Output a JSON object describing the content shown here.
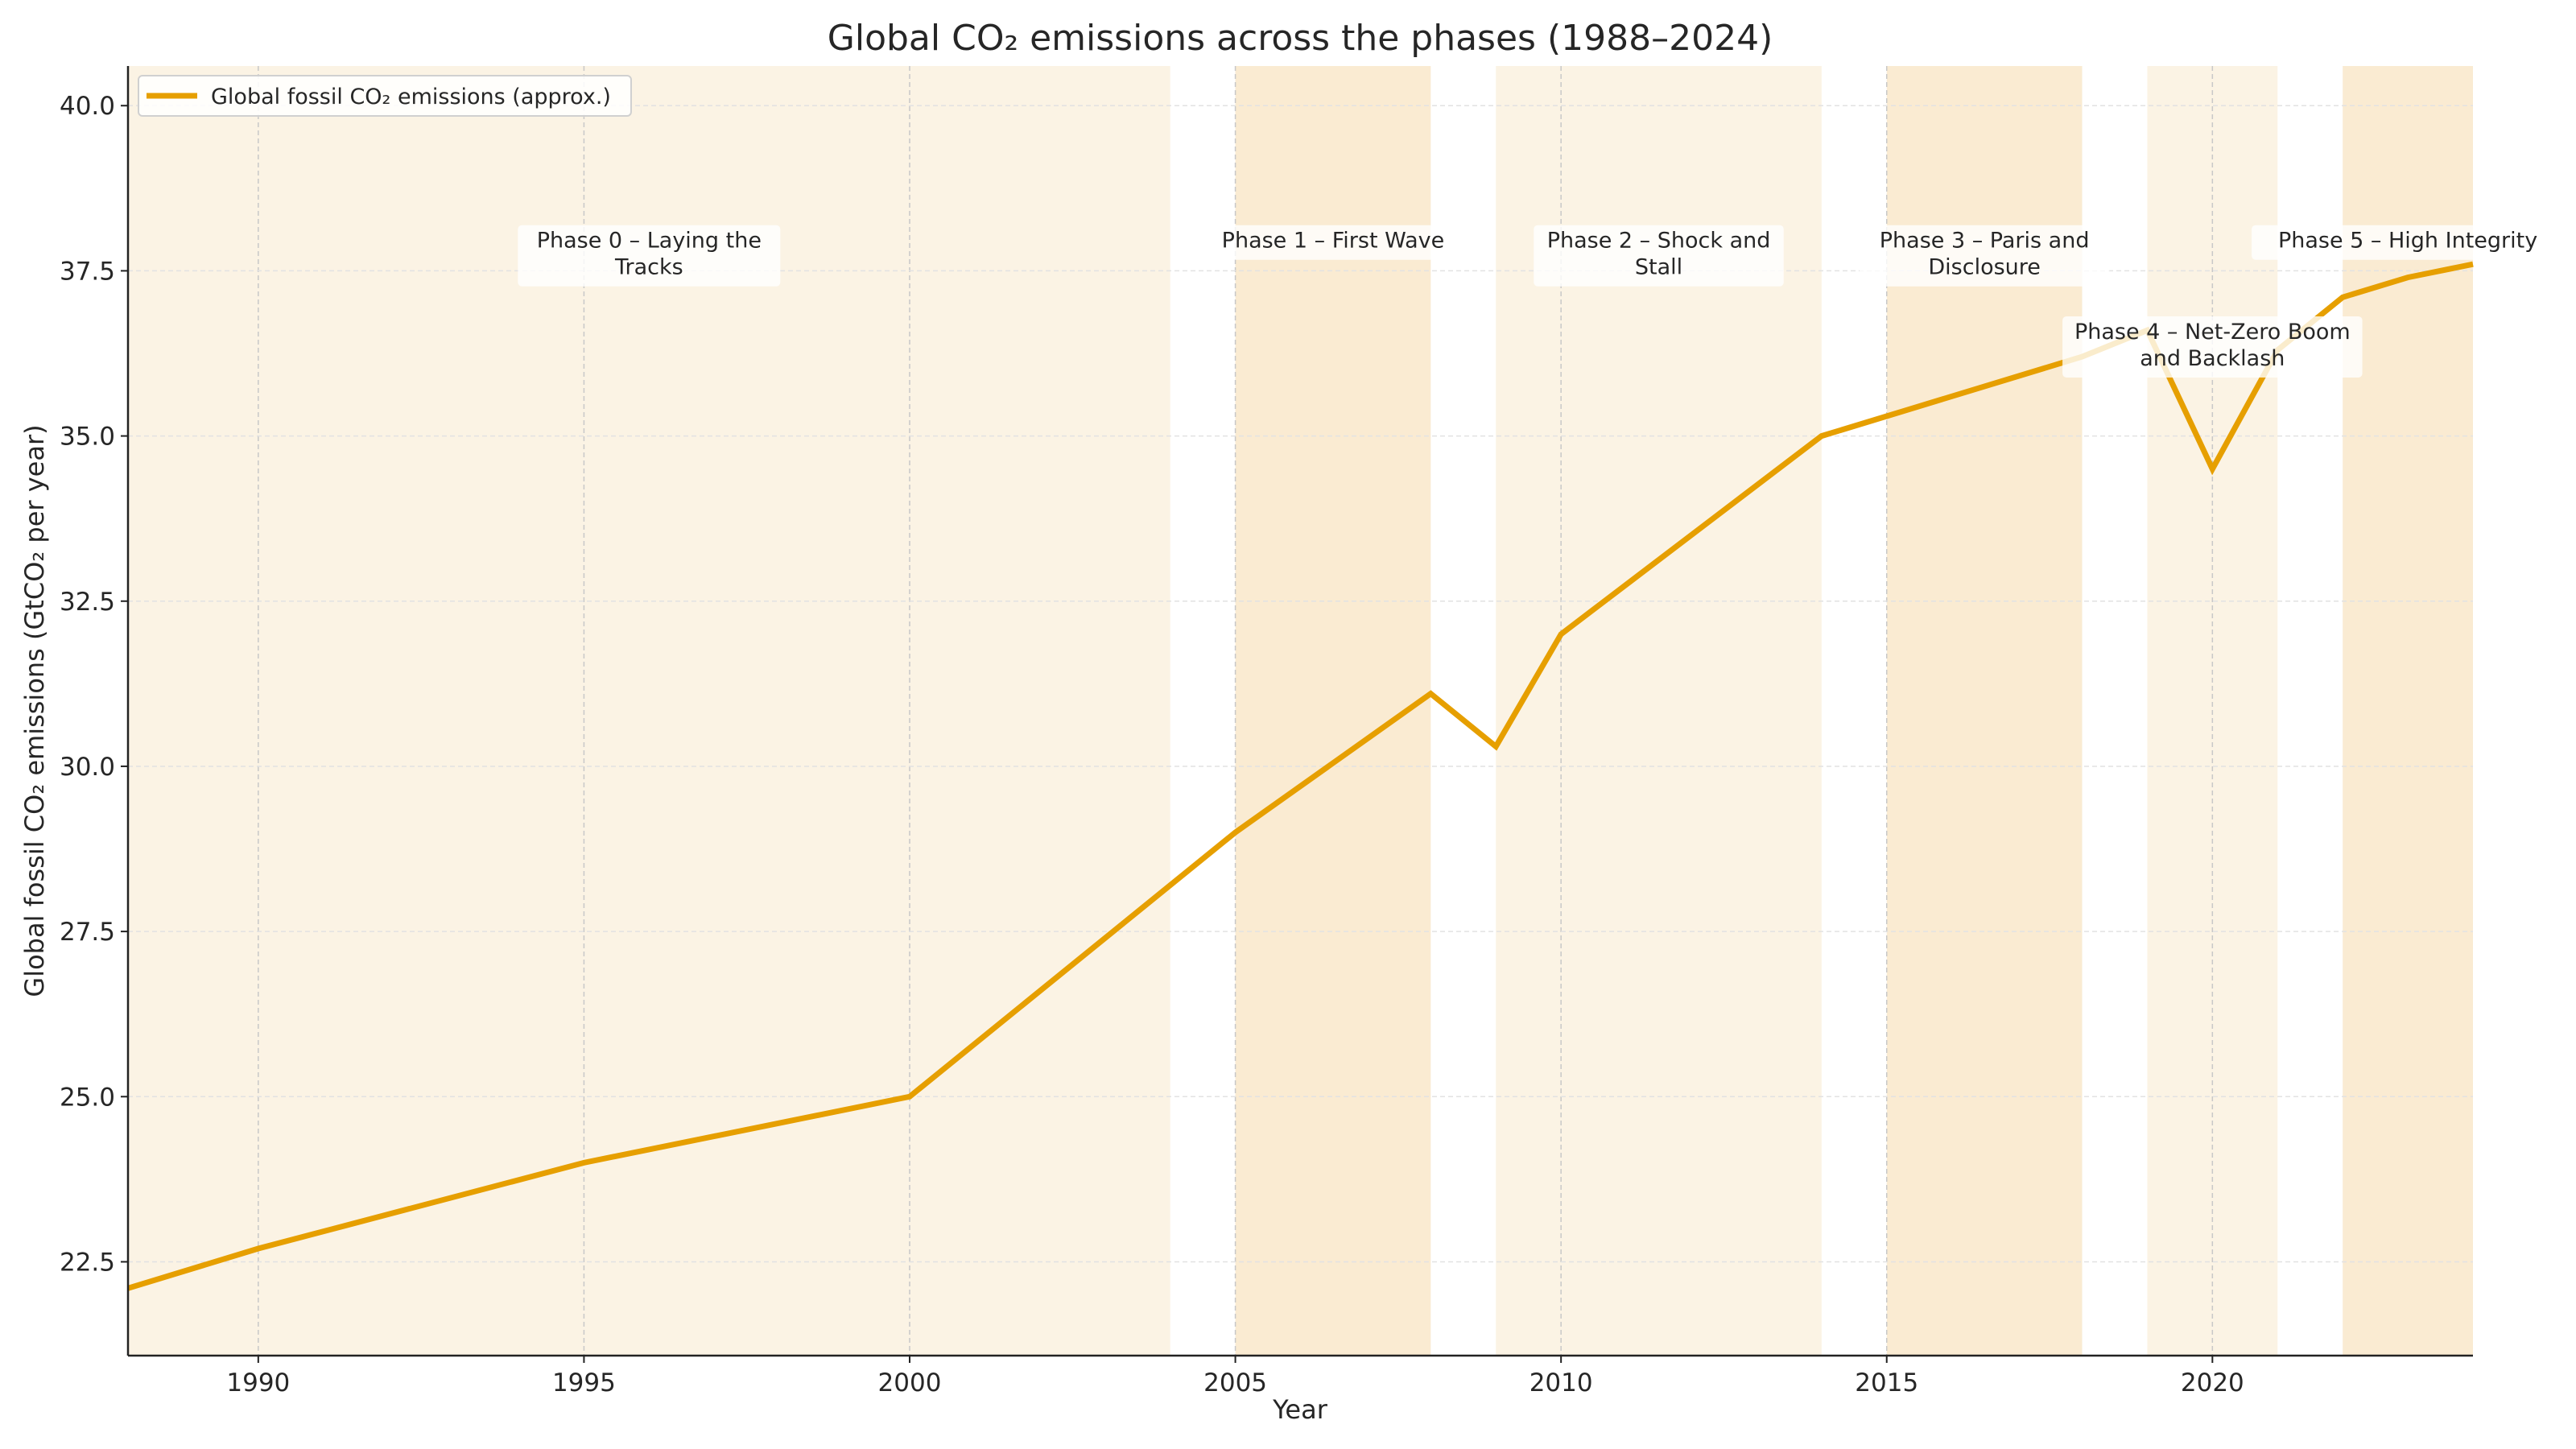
{
  "chart_data": {
    "type": "line",
    "title": "Global CO₂ emissions across the phases (1988–2024)",
    "xlabel": "Year",
    "ylabel": "Global fossil CO₂ emissions (GtCO₂ per year)",
    "xlim": [
      1988,
      2024
    ],
    "ylim": [
      21.08,
      40.6
    ],
    "xticks": [
      1990,
      1995,
      2000,
      2005,
      2010,
      2015,
      2020
    ],
    "yticks": [
      22.5,
      25.0,
      27.5,
      30.0,
      32.5,
      35.0,
      37.5,
      40.0
    ],
    "grid": true,
    "legend_position": "top-left",
    "series": [
      {
        "name": "Global fossil CO₂ emissions (approx.)",
        "color": "#e69f00",
        "x": [
          1988,
          1990,
          1995,
          2000,
          2005,
          2008,
          2009,
          2010,
          2014,
          2018,
          2019,
          2020,
          2021,
          2022,
          2023,
          2024
        ],
        "y": [
          22.1,
          22.7,
          24.0,
          25.0,
          29.0,
          31.1,
          30.3,
          32.0,
          35.0,
          36.2,
          36.6,
          34.5,
          36.3,
          37.1,
          37.4,
          37.6
        ]
      }
    ],
    "phases": [
      {
        "label": [
          "Phase 0 – Laying the",
          "Tracks"
        ],
        "start": 1988,
        "end": 2004,
        "shade": "#fbf3e4",
        "label_y": 37.85
      },
      {
        "label": [
          "Phase 1 – First Wave"
        ],
        "start": 2005,
        "end": 2008,
        "shade": "#faebd2",
        "label_y": 37.85
      },
      {
        "label": [
          "Phase 2 – Shock and",
          "Stall"
        ],
        "start": 2009,
        "end": 2014,
        "shade": "#fbf3e4",
        "label_y": 37.85
      },
      {
        "label": [
          "Phase 3 – Paris and",
          "Disclosure"
        ],
        "start": 2015,
        "end": 2018,
        "shade": "#faebd2",
        "label_y": 37.85
      },
      {
        "label": [
          "Phase 4 – Net-Zero Boom",
          "and Backlash"
        ],
        "start": 2019,
        "end": 2021,
        "shade": "#fbf3e4",
        "label_y": 36.47
      },
      {
        "label": [
          "Phase 5 – High Integrity"
        ],
        "start": 2022,
        "end": 2024,
        "shade": "#faebd2",
        "label_y": 37.85
      }
    ]
  }
}
